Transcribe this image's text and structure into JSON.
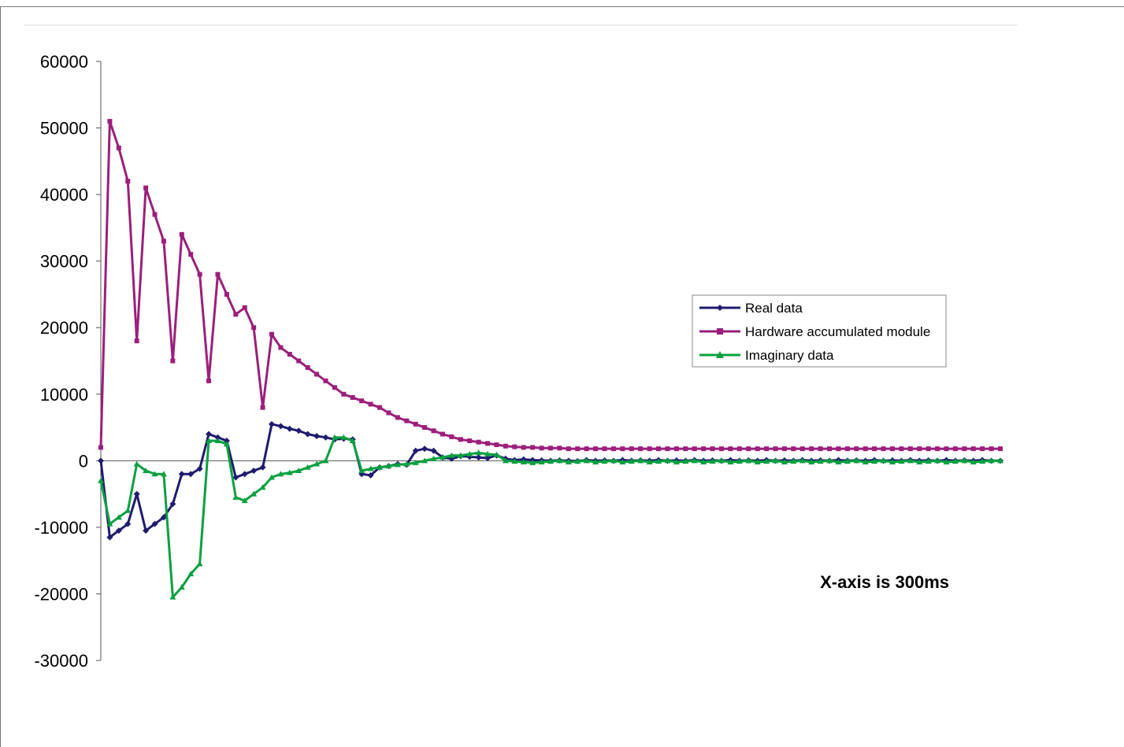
{
  "chart_data": {
    "type": "line",
    "title": "",
    "xlabel": "",
    "ylabel": "",
    "ylim": [
      -30000,
      60000
    ],
    "yticks": [
      60000,
      50000,
      40000,
      30000,
      20000,
      10000,
      0,
      -10000,
      -20000,
      -30000
    ],
    "grid": false,
    "legend_position": "right",
    "note": "X-axis is 300ms",
    "x": [
      0,
      1,
      2,
      3,
      4,
      5,
      6,
      7,
      8,
      9,
      10,
      11,
      12,
      13,
      14,
      15,
      16,
      17,
      18,
      19,
      20,
      21,
      22,
      23,
      24,
      25,
      26,
      27,
      28,
      29,
      30,
      31,
      32,
      33,
      34,
      35,
      36,
      37,
      38,
      39,
      40,
      41,
      42,
      43,
      44,
      45,
      46,
      47,
      48,
      49,
      50,
      51,
      52,
      53,
      54,
      55,
      56,
      57,
      58,
      59,
      60,
      61,
      62,
      63,
      64,
      65,
      66,
      67,
      68,
      69,
      70,
      71,
      72,
      73,
      74,
      75,
      76,
      77,
      78,
      79,
      80,
      81,
      82,
      83,
      84,
      85,
      86,
      87,
      88,
      89,
      90,
      91,
      92,
      93,
      94,
      95,
      96,
      97,
      98,
      99,
      100
    ],
    "series": [
      {
        "name": "Real data",
        "color": "#1f1b6e",
        "marker": "diamond",
        "values": [
          0,
          -11500,
          -10500,
          -9500,
          -5000,
          -10500,
          -9500,
          -8500,
          -6500,
          -2000,
          -2000,
          -1200,
          4000,
          3500,
          3000,
          -2500,
          -2000,
          -1500,
          -1000,
          5500,
          5200,
          4800,
          4500,
          4000,
          3700,
          3500,
          3200,
          3300,
          3200,
          -2000,
          -2200,
          -1000,
          -800,
          -500,
          -600,
          1500,
          1800,
          1500,
          500,
          300,
          700,
          600,
          500,
          400,
          800,
          300,
          100,
          200,
          100,
          50,
          0,
          50,
          0,
          -50,
          100,
          0,
          50,
          0,
          100,
          0,
          50,
          0,
          100,
          0,
          50,
          0,
          100,
          0,
          50,
          0,
          100,
          0,
          50,
          0,
          100,
          0,
          50,
          0,
          100,
          0,
          50,
          0,
          100,
          0,
          50,
          0,
          100,
          0,
          50,
          0,
          100,
          0,
          50,
          0,
          100,
          0,
          50,
          0,
          100,
          0,
          0
        ]
      },
      {
        "name": "Hardware accumulated module",
        "color": "#9b1f7b",
        "marker": "square",
        "values": [
          2000,
          51000,
          47000,
          42000,
          18000,
          41000,
          37000,
          33000,
          15000,
          34000,
          31000,
          28000,
          12000,
          28000,
          25000,
          22000,
          23000,
          20000,
          8000,
          19000,
          17000,
          16000,
          15000,
          14000,
          13000,
          12000,
          11000,
          10000,
          9500,
          9000,
          8500,
          8000,
          7200,
          6500,
          6000,
          5500,
          5000,
          4500,
          4000,
          3600,
          3200,
          3000,
          2800,
          2600,
          2400,
          2200,
          2100,
          2000,
          2000,
          1900,
          1900,
          1900,
          1800,
          1800,
          1800,
          1800,
          1800,
          1800,
          1800,
          1800,
          1800,
          1800,
          1800,
          1800,
          1800,
          1800,
          1800,
          1800,
          1800,
          1800,
          1800,
          1800,
          1800,
          1800,
          1800,
          1800,
          1800,
          1800,
          1800,
          1800,
          1800,
          1800,
          1800,
          1800,
          1800,
          1800,
          1800,
          1800,
          1800,
          1800,
          1800,
          1800,
          1800,
          1800,
          1800,
          1800,
          1800,
          1800,
          1800,
          1800,
          1800
        ]
      },
      {
        "name": "Imaginary data",
        "color": "#0aa040",
        "marker": "triangle",
        "values": [
          -3000,
          -9500,
          -8500,
          -7500,
          -500,
          -1500,
          -2000,
          -2000,
          -20500,
          -19000,
          -17000,
          -15500,
          3000,
          3000,
          2500,
          -5500,
          -6000,
          -5000,
          -4000,
          -2500,
          -2000,
          -1800,
          -1500,
          -1000,
          -500,
          0,
          3500,
          3500,
          3000,
          -1500,
          -1200,
          -1000,
          -800,
          -600,
          -500,
          -300,
          0,
          300,
          500,
          800,
          800,
          1000,
          1200,
          1000,
          900,
          0,
          -100,
          -200,
          -300,
          -200,
          -100,
          0,
          -200,
          -100,
          0,
          -200,
          -100,
          0,
          -200,
          -100,
          0,
          -200,
          -100,
          0,
          -200,
          -100,
          0,
          -200,
          -100,
          0,
          -200,
          -100,
          0,
          -200,
          -100,
          0,
          -200,
          -100,
          0,
          -200,
          -100,
          0,
          -200,
          -100,
          0,
          -200,
          -100,
          0,
          -200,
          -100,
          0,
          -200,
          -100,
          0,
          -200,
          -100,
          0,
          -200,
          -100,
          0,
          0
        ]
      }
    ]
  },
  "colors": {
    "axis": "#555555",
    "frame": "#777777",
    "legend_border": "#888888"
  }
}
